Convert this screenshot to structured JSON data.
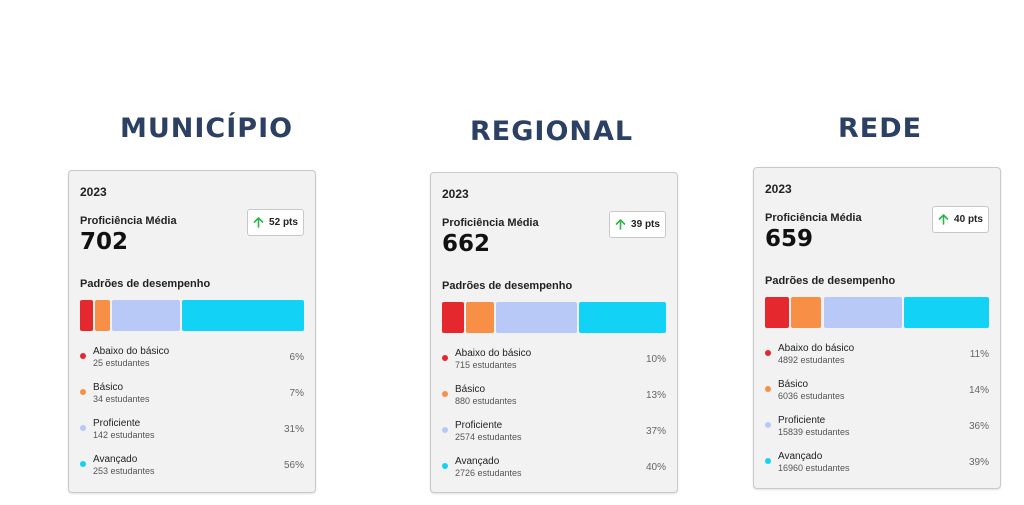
{
  "colors": {
    "abaixo": "#e5282e",
    "basico": "#f78f46",
    "proficiente": "#b8c8f7",
    "avancado": "#12d3f5",
    "arrow": "#2fb54a"
  },
  "panels": [
    {
      "title": "MUNICÍPIO",
      "year": "2023",
      "prof_label": "Proficiência Média",
      "prof_value": "702",
      "delta": "52 pts",
      "padroes_label": "Padrões de desempenho",
      "levels": [
        {
          "name": "Abaixo do básico",
          "count": "25 estudantes",
          "pct": "6%",
          "share": 0.06
        },
        {
          "name": "Básico",
          "count": "34 estudantes",
          "pct": "7%",
          "share": 0.07
        },
        {
          "name": "Proficiente",
          "count": "142 estudantes",
          "pct": "31%",
          "share": 0.31
        },
        {
          "name": "Avançado",
          "count": "253 estudantes",
          "pct": "56%",
          "share": 0.56
        }
      ]
    },
    {
      "title": "REGIONAL",
      "year": "2023",
      "prof_label": "Proficiência Média",
      "prof_value": "662",
      "delta": "39 pts",
      "padroes_label": "Padrões de desempenho",
      "levels": [
        {
          "name": "Abaixo do básico",
          "count": "715 estudantes",
          "pct": "10%",
          "share": 0.1
        },
        {
          "name": "Básico",
          "count": "880 estudantes",
          "pct": "13%",
          "share": 0.13
        },
        {
          "name": "Proficiente",
          "count": "2574 estudantes",
          "pct": "37%",
          "share": 0.37
        },
        {
          "name": "Avançado",
          "count": "2726 estudantes",
          "pct": "40%",
          "share": 0.4
        }
      ]
    },
    {
      "title": "REDE",
      "year": "2023",
      "prof_label": "Proficiência Média",
      "prof_value": "659",
      "delta": "40 pts",
      "padroes_label": "Padrões de desempenho",
      "levels": [
        {
          "name": "Abaixo do básico",
          "count": "4892 estudantes",
          "pct": "11%",
          "share": 0.11
        },
        {
          "name": "Básico",
          "count": "6036 estudantes",
          "pct": "14%",
          "share": 0.14
        },
        {
          "name": "Proficiente",
          "count": "15839 estudantes",
          "pct": "36%",
          "share": 0.36
        },
        {
          "name": "Avançado",
          "count": "16960 estudantes",
          "pct": "39%",
          "share": 0.39
        }
      ]
    }
  ]
}
